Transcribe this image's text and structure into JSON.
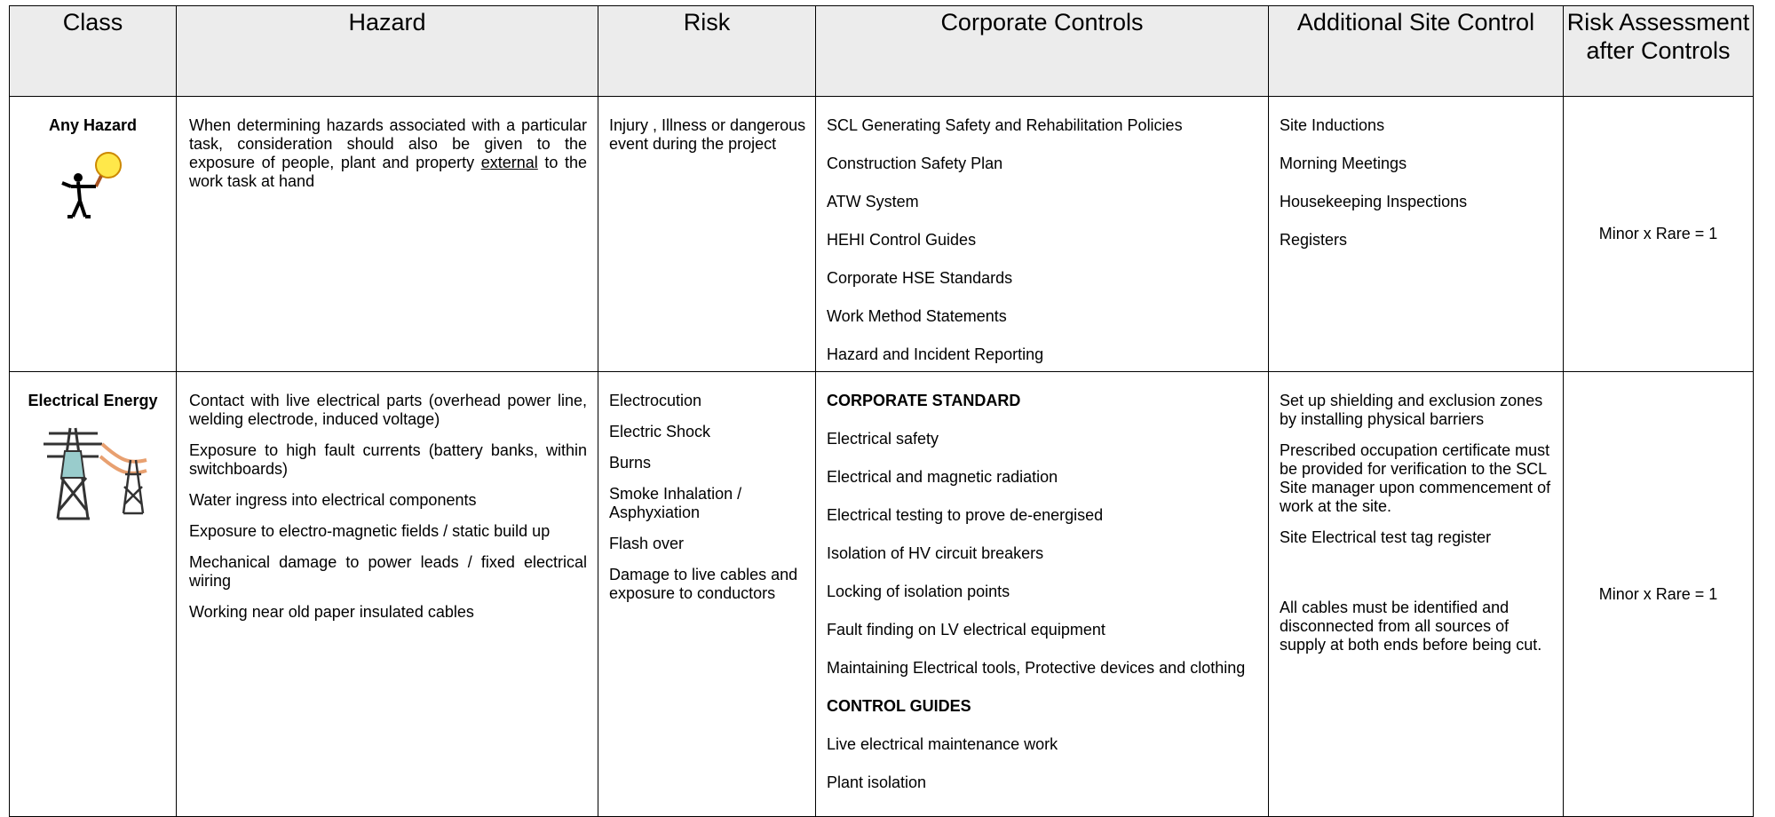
{
  "header": {
    "columns": [
      "Class",
      "Hazard",
      "Risk",
      "Corporate Controls",
      "Additional Site Control",
      "Risk Assessment after Controls"
    ]
  },
  "rows": [
    {
      "class": "Any Hazard",
      "hazard": [
        [
          {
            "text": "When determining hazards associated with a particular task, consideration should also be given to the exposure of people, plant and property "
          },
          {
            "text": "external",
            "underline": true
          },
          {
            "text": " to the work task at hand"
          }
        ]
      ],
      "risk": [
        "Injury , Illness or dangerous event during the project"
      ],
      "corporate_controls": [
        {
          "items": [
            "SCL Generating Safety and Rehabilitation Policies",
            "Construction Safety Plan",
            "ATW System",
            "HEHI Control Guides",
            "Corporate HSE Standards",
            "Work Method Statements",
            "Hazard and Incident Reporting"
          ]
        }
      ],
      "site_controls": [
        "Site Inductions",
        "Morning Meetings",
        "Housekeeping Inspections",
        "Registers"
      ],
      "assessment": "Minor x Rare = 1"
    },
    {
      "class": "Electrical Energy",
      "hazard": [
        [
          {
            "text": "Contact with live electrical parts (overhead power line, welding electrode, induced voltage)"
          }
        ],
        [
          {
            "text": "Exposure to high fault currents (battery banks, within switchboards)"
          }
        ],
        [
          {
            "text": "Water ingress into electrical components"
          }
        ],
        [
          {
            "text": "Exposure to electro-magnetic fields / static build up"
          }
        ],
        [
          {
            "text": "Mechanical damage to power leads / fixed electrical wiring"
          }
        ],
        [
          {
            "text": "Working near old paper insulated cables"
          }
        ]
      ],
      "risk": [
        "Electrocution",
        "Electric Shock",
        "Burns",
        "Smoke Inhalation / Asphyxiation",
        "Flash over",
        "Damage to live cables and exposure to conductors"
      ],
      "corporate_controls": [
        {
          "heading": "CORPORATE STANDARD",
          "items": [
            "Electrical safety",
            "Electrical and magnetic radiation",
            "Electrical testing to prove de-energised",
            "Isolation of HV circuit breakers",
            "Locking of isolation points",
            "Fault finding on LV electrical equipment",
            "Maintaining Electrical tools, Protective devices and clothing"
          ]
        },
        {
          "heading": "CONTROL GUIDES",
          "items": [
            "Live electrical maintenance work",
            "Plant isolation"
          ]
        }
      ],
      "site_controls": [
        "Set up shielding and exclusion zones by installing physical barriers",
        "Prescribed occupation certificate must be provided for verification to the SCL Site manager upon commencement of work at the site.",
        "Site Electrical test tag register",
        "All cables must be identified and disconnected from all sources of supply at both ends before being cut."
      ],
      "assessment": "Minor x Rare = 1"
    }
  ]
}
